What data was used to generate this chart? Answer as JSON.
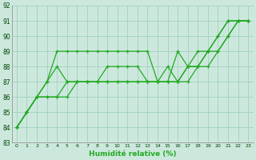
{
  "xlabel": "Humidité relative (%)",
  "xlim": [
    -0.5,
    23.5
  ],
  "ylim": [
    83,
    92
  ],
  "yticks": [
    83,
    84,
    85,
    86,
    87,
    88,
    89,
    90,
    91,
    92
  ],
  "xticks": [
    0,
    1,
    2,
    3,
    4,
    5,
    6,
    7,
    8,
    9,
    10,
    11,
    12,
    13,
    14,
    15,
    16,
    17,
    18,
    19,
    20,
    21,
    22,
    23
  ],
  "bg_color": "#cce8dd",
  "grid_color": "#99ccbb",
  "line_color": "#22aa22",
  "line_width": 0.9,
  "marker": "+",
  "marker_size": 3.5,
  "marker_lw": 0.9,
  "lines": [
    [
      84,
      85,
      86,
      87,
      89,
      89,
      89,
      89,
      89,
      89,
      89,
      89,
      89,
      89,
      87,
      87,
      89,
      88,
      89,
      89,
      90,
      91,
      91,
      91
    ],
    [
      84,
      85,
      86,
      87,
      88,
      87,
      87,
      87,
      87,
      87,
      87,
      87,
      87,
      87,
      87,
      87,
      87,
      88,
      88,
      89,
      90,
      91,
      91,
      91
    ],
    [
      84,
      85,
      86,
      86,
      86,
      87,
      87,
      87,
      87,
      88,
      88,
      88,
      88,
      87,
      87,
      88,
      87,
      88,
      88,
      89,
      89,
      90,
      91,
      91
    ],
    [
      84,
      85,
      86,
      86,
      86,
      86,
      87,
      87,
      87,
      87,
      87,
      87,
      87,
      87,
      87,
      87,
      87,
      87,
      88,
      88,
      89,
      90,
      91,
      91
    ]
  ]
}
